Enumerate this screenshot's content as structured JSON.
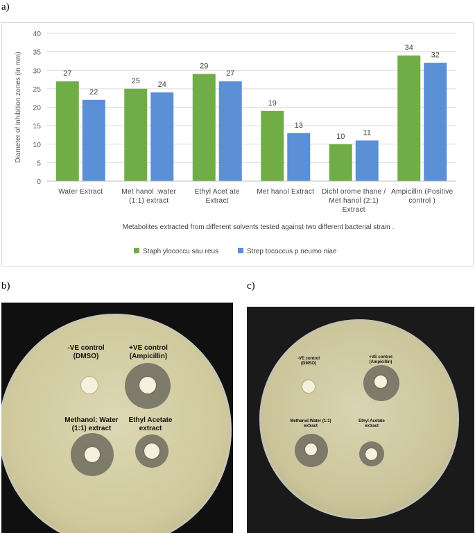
{
  "panels": {
    "a": "a)",
    "b": "b)",
    "c": "c)"
  },
  "chart_data": {
    "type": "bar",
    "title": "",
    "ylabel": "Diameter of inhibition zones (in mm)",
    "xlabel": "Metabolites extracted from different solvents tested against two different bacterial strain .",
    "ylim": [
      0,
      40
    ],
    "yticks": [
      0,
      5,
      10,
      15,
      20,
      25,
      30,
      35,
      40
    ],
    "grid": true,
    "legend_position": "bottom",
    "categories": [
      [
        "Water Extract"
      ],
      [
        "Met hanol :water",
        "(1:1) extract"
      ],
      [
        "Ethyl Acet ate",
        "Extract"
      ],
      [
        "Met hanol Extract"
      ],
      [
        "Dichl orome thane /",
        "Met hanol (2:1)",
        "Extract"
      ],
      [
        "Ampicillin (Positive",
        "control )"
      ]
    ],
    "series": [
      {
        "name": "Staph ylococcu sau reus",
        "color": "#70ad47",
        "values": [
          27,
          25,
          29,
          19,
          10,
          34
        ]
      },
      {
        "name": "Strep tococcus p neumo niae",
        "color": "#5b8fd6",
        "values": [
          22,
          24,
          27,
          13,
          11,
          32
        ]
      }
    ]
  },
  "plate_b": {
    "labels": {
      "neg": [
        "-VE control",
        "(DMSO)"
      ],
      "pos": [
        "+VE control",
        "(Ampicillin)"
      ],
      "meth": [
        "Methanol: Water",
        "(1:1) extract"
      ],
      "ethyl": [
        "Ethyl Acetate",
        "extract"
      ]
    }
  },
  "plate_c": {
    "labels": {
      "neg": [
        "-VE control",
        "(DMSO)"
      ],
      "pos": [
        "+VE control",
        "(Ampicillin)"
      ],
      "meth": [
        "Methanol:Water (1:1)",
        "extract"
      ],
      "ethyl": [
        "Ethyl Acetate",
        "extract"
      ]
    }
  }
}
